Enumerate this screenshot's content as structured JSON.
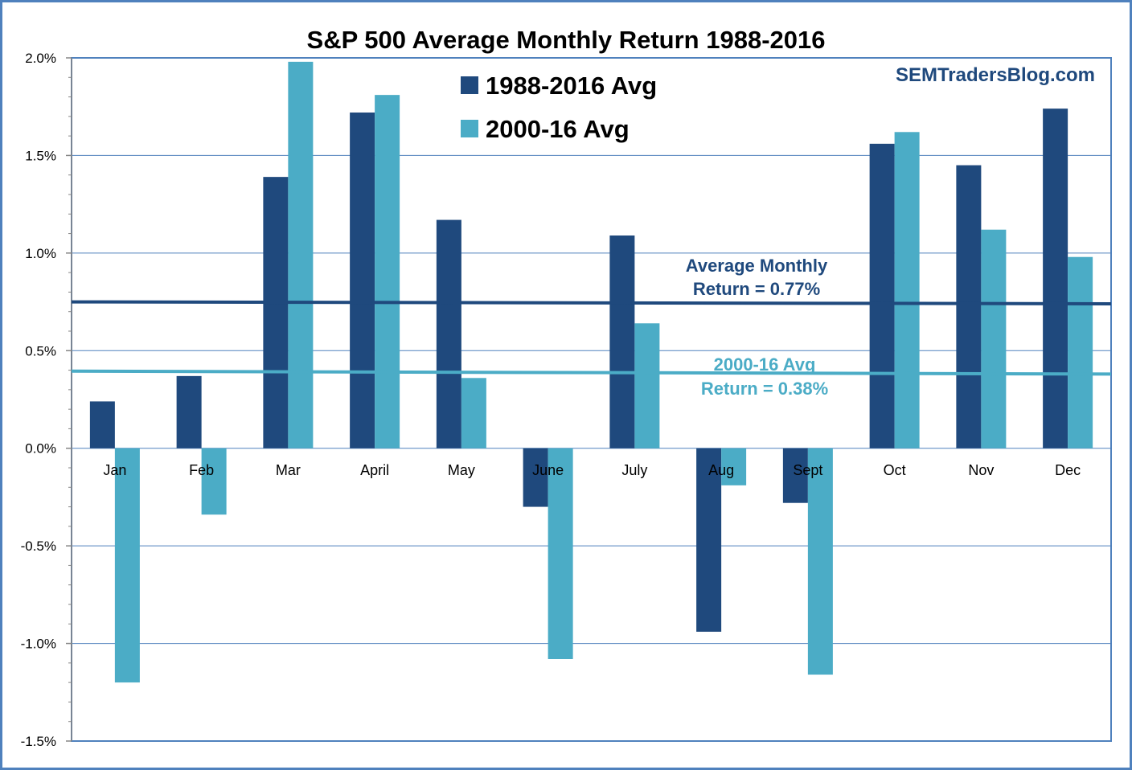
{
  "chart_data": {
    "type": "bar",
    "title": "S&P 500 Average Monthly Return 1988-2016",
    "watermark": "SEMTradersBlog.com",
    "categories": [
      "Jan",
      "Feb",
      "Mar",
      "April",
      "May",
      "June",
      "July",
      "Aug",
      "Sept",
      "Oct",
      "Nov",
      "Dec"
    ],
    "series": [
      {
        "name": "1988-2016 Avg",
        "color": "#1f497d",
        "values": [
          0.24,
          0.37,
          1.39,
          1.72,
          1.17,
          -0.3,
          1.09,
          -0.94,
          -0.28,
          1.56,
          1.45,
          1.74
        ]
      },
      {
        "name": "2000-16 Avg",
        "color": "#4bacc6",
        "values": [
          -1.2,
          -0.34,
          1.98,
          1.81,
          0.36,
          -1.08,
          0.64,
          -0.19,
          -1.16,
          1.62,
          1.12,
          0.98
        ]
      }
    ],
    "ylim": [
      -1.5,
      2.0
    ],
    "yticks": [
      2.0,
      1.5,
      1.0,
      0.5,
      0.0,
      -0.5,
      -1.0,
      -1.5
    ],
    "ytick_labels": [
      "2.0%",
      "1.5%",
      "1.0%",
      "0.5%",
      "0.0%",
      "-0.5%",
      "-1.0%",
      "-1.5%"
    ],
    "grid": true,
    "legend_position": "top-center",
    "reference_lines": [
      {
        "value_start": 0.75,
        "value_end": 0.74,
        "color": "#1f497d",
        "label_lines": [
          "Average Monthly",
          "Return = 0.77%"
        ]
      },
      {
        "value_start": 0.395,
        "value_end": 0.38,
        "color": "#4bacc6",
        "label_lines": [
          "2000-16 Avg",
          "Return = 0.38%"
        ]
      }
    ]
  }
}
